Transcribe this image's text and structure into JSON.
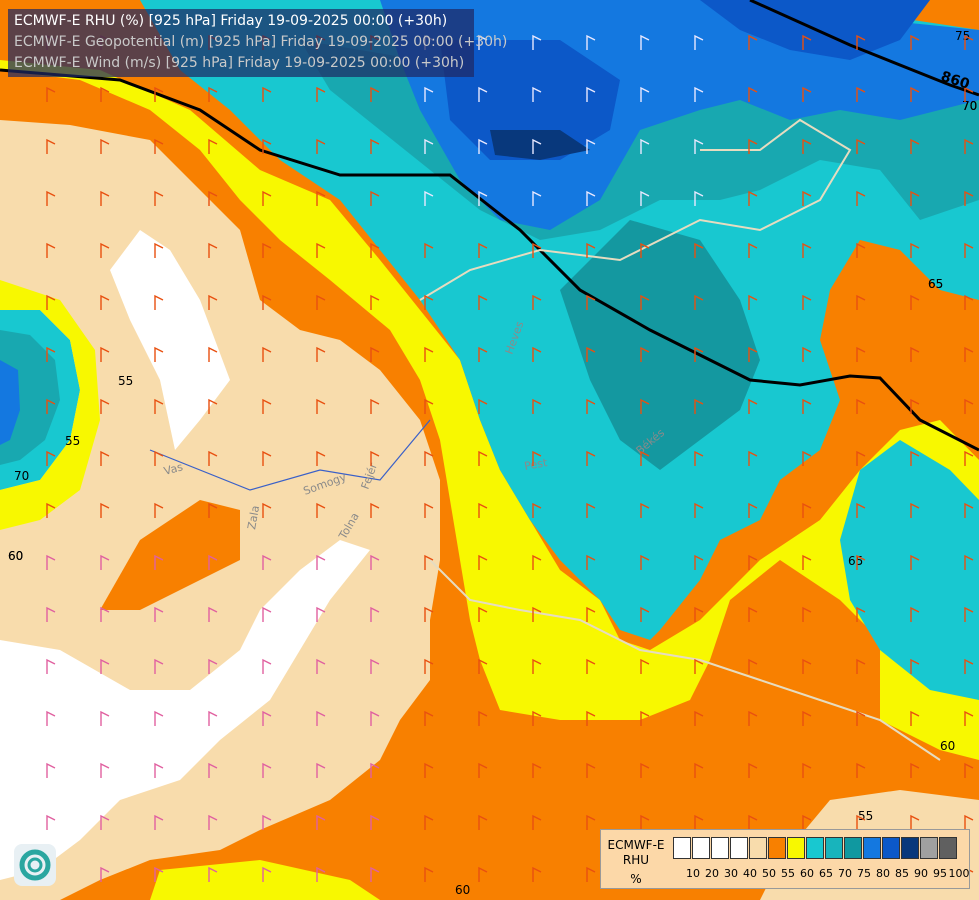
{
  "header": {
    "title_rhu": "ECMWF-E RHU (%) [925 hPa] Friday 19-09-2025 00:00 (+30h)",
    "title_geopotential": "ECMWF-E Geopotential (m) [925 hPa] Friday 19-09-2025 00:00 (+30h)",
    "title_wind": "ECMWF-E Wind (m/s) [925 hPa] Friday 19-09-2025 00:00 (+30h)"
  },
  "map": {
    "isohypse_label": "860",
    "contour_labels": [
      "55",
      "55",
      "65",
      "70",
      "60",
      "60",
      "65",
      "65",
      "70",
      "75",
      "55",
      "60",
      "60",
      "70"
    ],
    "river_labels": [
      "Vas",
      "Somogy",
      "Tolna",
      "Fejér",
      "Zala",
      "Heves",
      "Pest",
      "Békés"
    ],
    "colors": {
      "rh_55_60": "#f88000",
      "rh_50_55": "#f8dcac",
      "rh_60_65": "#f8f800",
      "rh_65_70": "#18c8d0",
      "rh_70_75": "#18a8b0",
      "rh_75_80": "#1098a0",
      "rh_80_85": "#1478e0",
      "rh_85_90": "#0c58c8",
      "rh_90_95": "#08387c",
      "rh_low": "#ffffff"
    }
  },
  "legend": {
    "title_line1": "ECMWF-E",
    "title_line2": "RHU",
    "unit": "%",
    "labels": [
      "10",
      "20",
      "30",
      "40",
      "50",
      "55",
      "60",
      "65",
      "70",
      "75",
      "80",
      "85",
      "90",
      "95",
      "100"
    ],
    "colors": [
      "#ffffff",
      "#ffffff",
      "#ffffff",
      "#ffffff",
      "#f8dcac",
      "#f88000",
      "#f8f800",
      "#18c8d0",
      "#18b4bc",
      "#1098a0",
      "#1478e0",
      "#0c58c8",
      "#08387c",
      "#a0a0a0",
      "#606060"
    ]
  },
  "icons": {
    "logo": "ecmwf-logo-icon",
    "wind_barb": "wind-barb-icon"
  }
}
